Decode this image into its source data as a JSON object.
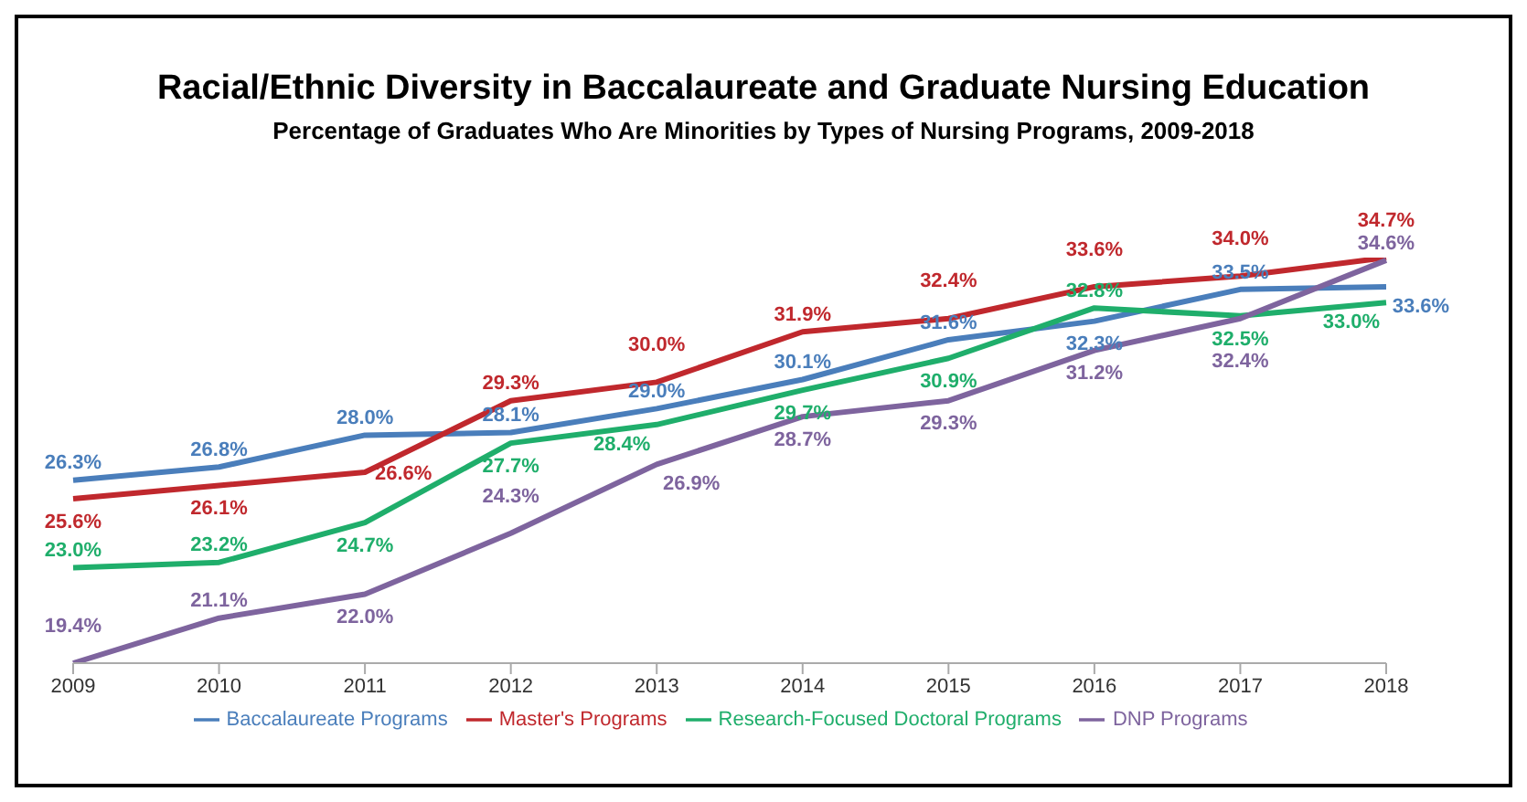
{
  "chart_data": {
    "type": "line",
    "title": "Racial/Ethnic Diversity in Baccalaureate and Graduate Nursing Education",
    "subtitle": "Percentage of Graduates Who Are Minorities by Types of Nursing Programs, 2009-2018",
    "categories": [
      "2009",
      "2010",
      "2011",
      "2012",
      "2013",
      "2014",
      "2015",
      "2016",
      "2017",
      "2018"
    ],
    "series": [
      {
        "name": "Baccalaureate Programs",
        "color": "#4a7ebb",
        "values": [
          26.3,
          26.8,
          28.0,
          28.1,
          29.0,
          30.1,
          31.6,
          32.3,
          33.5,
          33.6
        ],
        "value_labels": [
          "26.3%",
          "26.8%",
          "28.0%",
          "28.1%",
          "29.0%",
          "30.1%",
          "31.6%",
          "32.3%",
          "33.5%",
          "33.6%"
        ]
      },
      {
        "name": "Master's Programs",
        "color": "#c0282d",
        "values": [
          25.6,
          26.1,
          26.6,
          29.3,
          30.0,
          31.9,
          32.4,
          33.6,
          34.0,
          34.7
        ],
        "value_labels": [
          "25.6%",
          "26.1%",
          "26.6%",
          "29.3%",
          "30.0%",
          "31.9%",
          "32.4%",
          "33.6%",
          "34.0%",
          "34.7%"
        ]
      },
      {
        "name": "Research-Focused Doctoral Programs",
        "color": "#1fae6b",
        "values": [
          23.0,
          23.2,
          24.7,
          27.7,
          28.4,
          29.7,
          30.9,
          32.8,
          32.5,
          33.0
        ],
        "value_labels": [
          "23.0%",
          "23.2%",
          "24.7%",
          "27.7%",
          "28.4%",
          "29.7%",
          "30.9%",
          "32.8%",
          "32.5%",
          "33.0%"
        ]
      },
      {
        "name": "DNP Programs",
        "color": "#7e649e",
        "values": [
          19.4,
          21.1,
          22.0,
          24.3,
          26.9,
          28.7,
          29.3,
          31.2,
          32.4,
          34.6
        ],
        "value_labels": [
          "19.4%",
          "21.1%",
          "22.0%",
          "24.3%",
          "26.9%",
          "28.7%",
          "29.3%",
          "31.2%",
          "32.4%",
          "34.6%"
        ]
      }
    ],
    "legend": "bottom",
    "grid": false,
    "marker": "none",
    "line_style": "solid"
  }
}
